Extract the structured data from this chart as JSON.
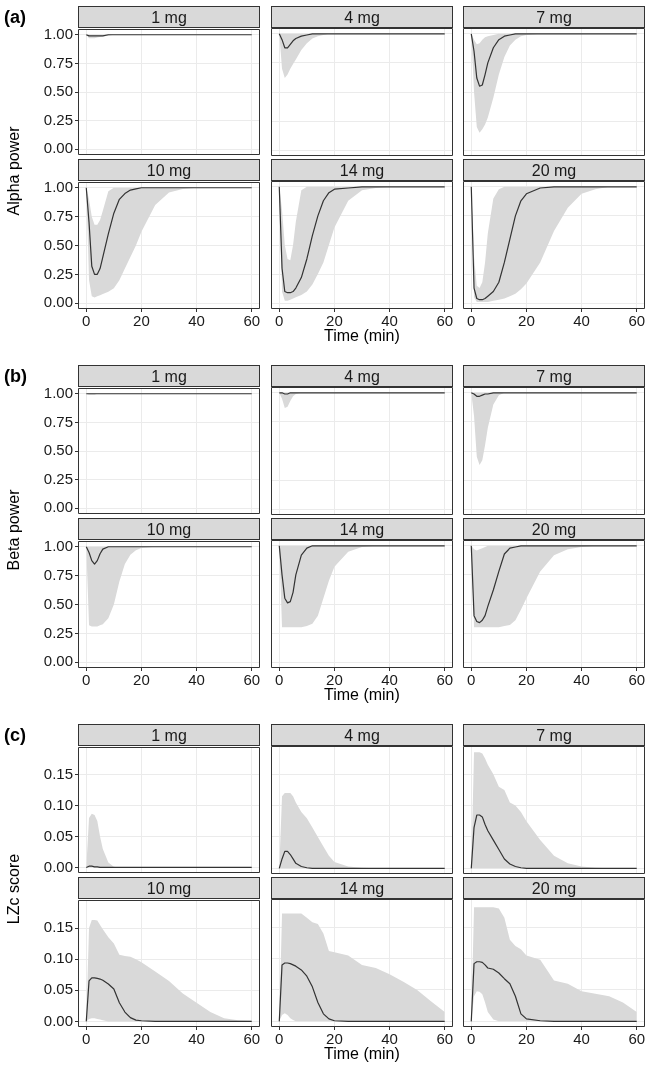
{
  "chart_data": [
    {
      "type": "line",
      "title": "1 mg",
      "ylabel": "Alpha power",
      "annotations": [
        "(a)"
      ],
      "x": [
        0,
        1,
        2,
        3,
        4,
        5,
        6,
        8,
        10,
        12,
        14,
        16,
        18,
        20,
        25,
        30,
        35,
        40,
        45,
        50,
        55,
        60
      ],
      "xlim": [
        -3,
        63
      ],
      "ylim": [
        -0.05,
        1.05
      ],
      "yticks": [
        {
          "value": 0,
          "label": "0.00"
        },
        {
          "value": 0.25,
          "label": "0.25"
        },
        {
          "value": 0.5,
          "label": "0.50"
        },
        {
          "value": 0.75,
          "label": "0.75"
        },
        {
          "value": 1,
          "label": "1.00"
        }
      ],
      "xticks": [
        0,
        20,
        40,
        60
      ],
      "tick_labels": "y",
      "grid": true,
      "marker": "none",
      "series": [
        {
          "color": "#333333",
          "values": [
            1,
            0.99,
            0.99,
            0.99,
            0.99,
            0.99,
            0.99,
            1,
            1,
            1,
            1,
            1,
            1,
            1,
            1,
            1,
            1,
            1,
            1,
            1,
            1,
            1
          ],
          "lower": [
            1,
            0.97,
            0.97,
            0.97,
            0.975,
            0.98,
            0.985,
            0.99,
            1,
            1,
            1,
            1,
            1,
            1,
            1,
            1,
            1,
            1,
            1,
            1,
            1,
            1
          ],
          "upper": [
            1,
            1,
            1,
            1,
            1,
            1,
            1,
            1,
            1,
            1,
            1,
            1,
            1,
            1,
            1,
            1,
            1,
            1,
            1,
            1,
            1,
            1
          ]
        }
      ]
    },
    {
      "type": "line",
      "title": "4 mg",
      "x": [
        0,
        1,
        2,
        3,
        4,
        5,
        6,
        8,
        10,
        12,
        14,
        16,
        18,
        20,
        25,
        30,
        35,
        40,
        45,
        50,
        55,
        60
      ],
      "xlim": [
        -3,
        63
      ],
      "ylim": [
        -0.05,
        1.05
      ],
      "yticks": [
        0,
        0.25,
        0.5,
        0.75,
        1
      ],
      "xticks": [
        0,
        20,
        40,
        60
      ],
      "tick_labels": false,
      "grid": true,
      "marker": "none",
      "series": [
        {
          "color": "#333333",
          "values": [
            1,
            0.95,
            0.88,
            0.88,
            0.91,
            0.94,
            0.96,
            0.98,
            0.99,
            1,
            1,
            1,
            1,
            1,
            1,
            1,
            1,
            1,
            1,
            1,
            1,
            1
          ],
          "lower": [
            1,
            0.7,
            0.62,
            0.65,
            0.7,
            0.74,
            0.78,
            0.86,
            0.92,
            0.96,
            0.98,
            0.99,
            1,
            1,
            1,
            1,
            1,
            1,
            1,
            1,
            1,
            1
          ],
          "upper": [
            1,
            1,
            1,
            1,
            1,
            1,
            1,
            1,
            1,
            1,
            1,
            1,
            1,
            1,
            1,
            1,
            1,
            1,
            1,
            1,
            1,
            1
          ]
        }
      ]
    },
    {
      "type": "line",
      "title": "7 mg",
      "x": [
        0,
        1,
        2,
        3,
        4,
        5,
        6,
        8,
        10,
        12,
        14,
        16,
        18,
        20,
        25,
        30,
        35,
        40,
        45,
        50,
        55,
        60
      ],
      "xlim": [
        -3,
        63
      ],
      "ylim": [
        -0.05,
        1.05
      ],
      "yticks": [
        0,
        0.25,
        0.5,
        0.75,
        1
      ],
      "xticks": [
        0,
        20,
        40,
        60
      ],
      "tick_labels": false,
      "grid": true,
      "marker": "none",
      "series": [
        {
          "color": "#333333",
          "values": [
            1,
            0.85,
            0.62,
            0.55,
            0.56,
            0.65,
            0.75,
            0.88,
            0.95,
            0.98,
            0.99,
            1,
            1,
            1,
            1,
            1,
            1,
            1,
            1,
            1,
            1,
            1
          ],
          "lower": [
            1,
            0.5,
            0.2,
            0.15,
            0.18,
            0.22,
            0.28,
            0.45,
            0.65,
            0.8,
            0.9,
            0.95,
            0.98,
            0.99,
            1,
            1,
            1,
            1,
            1,
            1,
            1,
            1
          ],
          "upper": [
            1,
            0.95,
            0.91,
            0.92,
            0.95,
            0.97,
            0.98,
            0.99,
            1,
            1,
            1,
            1,
            1,
            1,
            1,
            1,
            1,
            1,
            1,
            1,
            1,
            1
          ]
        }
      ]
    },
    {
      "type": "line",
      "title": "10 mg",
      "x": [
        0,
        1,
        2,
        3,
        4,
        5,
        6,
        8,
        10,
        12,
        14,
        16,
        18,
        20,
        25,
        30,
        35,
        40,
        45,
        50,
        55,
        60
      ],
      "xlim": [
        -3,
        63
      ],
      "ylim": [
        -0.05,
        1.05
      ],
      "yticks": [
        {
          "value": 0,
          "label": "0.00"
        },
        {
          "value": 0.25,
          "label": "0.25"
        },
        {
          "value": 0.5,
          "label": "0.50"
        },
        {
          "value": 0.75,
          "label": "0.75"
        },
        {
          "value": 1,
          "label": "1.00"
        }
      ],
      "xticks": [
        0,
        20,
        40,
        60
      ],
      "grid": true,
      "marker": "none",
      "series": [
        {
          "color": "#333333",
          "values": [
            1,
            0.7,
            0.32,
            0.25,
            0.25,
            0.3,
            0.4,
            0.6,
            0.78,
            0.9,
            0.95,
            0.98,
            0.99,
            1,
            1,
            1,
            1,
            1,
            1,
            1,
            1,
            1
          ],
          "lower": [
            1,
            0.2,
            0.06,
            0.05,
            0.06,
            0.07,
            0.08,
            0.1,
            0.13,
            0.2,
            0.3,
            0.4,
            0.5,
            0.62,
            0.85,
            0.96,
            0.99,
            1,
            1,
            1,
            1,
            1
          ],
          "upper": [
            1,
            0.9,
            0.75,
            0.68,
            0.68,
            0.72,
            0.8,
            0.97,
            1,
            1,
            1,
            1,
            1,
            1,
            1,
            1,
            1,
            1,
            1,
            1,
            1,
            1
          ]
        }
      ]
    },
    {
      "type": "line",
      "title": "14 mg",
      "xlabel": "Time (min)",
      "x": [
        0,
        1,
        2,
        3,
        4,
        5,
        6,
        8,
        10,
        12,
        14,
        16,
        18,
        20,
        25,
        30,
        35,
        40,
        45,
        50,
        55,
        60
      ],
      "xlim": [
        -3,
        63
      ],
      "ylim": [
        -0.05,
        1.05
      ],
      "yticks": [
        0,
        0.25,
        0.5,
        0.75,
        1
      ],
      "xticks": [
        0,
        20,
        40,
        60
      ],
      "tick_labels": "x",
      "grid": true,
      "marker": "none",
      "series": [
        {
          "color": "#333333",
          "values": [
            1,
            0.3,
            0.1,
            0.09,
            0.09,
            0.1,
            0.13,
            0.22,
            0.38,
            0.58,
            0.75,
            0.88,
            0.95,
            0.98,
            0.99,
            1,
            1,
            1,
            1,
            1,
            1,
            1
          ],
          "lower": [
            1,
            0.1,
            0.02,
            0.02,
            0.03,
            0.04,
            0.05,
            0.07,
            0.1,
            0.16,
            0.25,
            0.35,
            0.5,
            0.65,
            0.88,
            0.97,
            0.99,
            1,
            1,
            1,
            1,
            1
          ],
          "upper": [
            1,
            0.8,
            0.5,
            0.38,
            0.37,
            0.5,
            0.7,
            0.97,
            1,
            1,
            1,
            1,
            1,
            1,
            1,
            1,
            1,
            1,
            1,
            1,
            1,
            1
          ]
        }
      ]
    },
    {
      "type": "line",
      "title": "20 mg",
      "x": [
        0,
        1,
        2,
        3,
        4,
        5,
        6,
        8,
        10,
        12,
        14,
        16,
        18,
        20,
        25,
        30,
        35,
        40,
        45,
        50,
        55,
        60
      ],
      "xlim": [
        -3,
        63
      ],
      "ylim": [
        -0.05,
        1.05
      ],
      "yticks": [
        0,
        0.25,
        0.5,
        0.75,
        1
      ],
      "xticks": [
        0,
        20,
        40,
        60
      ],
      "tick_labels": "x",
      "grid": true,
      "marker": "none",
      "series": [
        {
          "color": "#333333",
          "values": [
            1,
            0.13,
            0.04,
            0.03,
            0.03,
            0.04,
            0.06,
            0.1,
            0.18,
            0.35,
            0.55,
            0.75,
            0.88,
            0.94,
            0.99,
            1,
            1,
            1,
            1,
            1,
            1,
            1
          ],
          "lower": [
            1,
            0.05,
            0.01,
            0.01,
            0.01,
            0.01,
            0.01,
            0.02,
            0.03,
            0.04,
            0.06,
            0.08,
            0.12,
            0.17,
            0.35,
            0.62,
            0.82,
            0.94,
            0.98,
            1,
            1,
            1
          ],
          "upper": [
            1,
            0.4,
            0.15,
            0.13,
            0.18,
            0.35,
            0.6,
            0.9,
            0.98,
            1,
            1,
            1,
            1,
            1,
            1,
            1,
            1,
            1,
            1,
            1,
            1,
            1
          ]
        }
      ]
    },
    {
      "type": "line",
      "title": "1 mg",
      "ylabel": "Beta power",
      "annotations": [
        "(b)"
      ],
      "x": [
        0,
        1,
        2,
        3,
        4,
        5,
        6,
        8,
        10,
        12,
        14,
        16,
        18,
        20,
        25,
        30,
        35,
        40,
        45,
        50,
        55,
        60
      ],
      "xlim": [
        -3,
        63
      ],
      "ylim": [
        -0.05,
        1.05
      ],
      "yticks": [
        {
          "value": 0,
          "label": "0.00"
        },
        {
          "value": 0.25,
          "label": "0.25"
        },
        {
          "value": 0.5,
          "label": "0.50"
        },
        {
          "value": 0.75,
          "label": "0.75"
        },
        {
          "value": 1,
          "label": "1.00"
        }
      ],
      "xticks": [
        0,
        20,
        40,
        60
      ],
      "tick_labels": "y",
      "grid": true,
      "marker": "none",
      "series": [
        {
          "color": "#333333",
          "values": [
            1,
            1,
            1,
            1,
            1,
            1,
            1,
            1,
            1,
            1,
            1,
            1,
            1,
            1,
            1,
            1,
            1,
            1,
            1,
            1,
            1,
            1
          ],
          "lower": [
            1,
            0.99,
            0.99,
            0.99,
            1,
            1,
            1,
            1,
            1,
            1,
            1,
            1,
            1,
            1,
            1,
            1,
            1,
            1,
            1,
            1,
            1,
            1
          ],
          "upper": [
            1,
            1,
            1,
            1,
            1,
            1,
            1,
            1,
            1,
            1,
            1,
            1,
            1,
            1,
            1,
            1,
            1,
            1,
            1,
            1,
            1,
            1
          ]
        }
      ]
    },
    {
      "type": "line",
      "title": "4 mg",
      "x": [
        0,
        1,
        2,
        3,
        4,
        5,
        6,
        8,
        10,
        12,
        14,
        16,
        18,
        20,
        25,
        30,
        35,
        40,
        45,
        50,
        55,
        60
      ],
      "xlim": [
        -3,
        63
      ],
      "ylim": [
        -0.05,
        1.05
      ],
      "yticks": [
        0,
        0.25,
        0.5,
        0.75,
        1
      ],
      "xticks": [
        0,
        20,
        40,
        60
      ],
      "tick_labels": false,
      "grid": true,
      "marker": "none",
      "series": [
        {
          "color": "#333333",
          "values": [
            1,
            1,
            0.99,
            0.99,
            1,
            1,
            1,
            1,
            1,
            1,
            1,
            1,
            1,
            1,
            1,
            1,
            1,
            1,
            1,
            1,
            1,
            1
          ],
          "lower": [
            1,
            0.95,
            0.87,
            0.88,
            0.93,
            0.97,
            0.99,
            1,
            1,
            1,
            1,
            1,
            1,
            1,
            1,
            1,
            1,
            1,
            1,
            1,
            1,
            1
          ],
          "upper": [
            1,
            1,
            1,
            1,
            1,
            1,
            1,
            1,
            1,
            1,
            1,
            1,
            1,
            1,
            1,
            1,
            1,
            1,
            1,
            1,
            1,
            1
          ]
        }
      ]
    },
    {
      "type": "line",
      "title": "7 mg",
      "x": [
        0,
        1,
        2,
        3,
        4,
        5,
        6,
        8,
        10,
        12,
        14,
        16,
        18,
        20,
        25,
        30,
        35,
        40,
        45,
        50,
        55,
        60
      ],
      "xlim": [
        -3,
        63
      ],
      "ylim": [
        -0.05,
        1.05
      ],
      "yticks": [
        0,
        0.25,
        0.5,
        0.75,
        1
      ],
      "xticks": [
        0,
        20,
        40,
        60
      ],
      "tick_labels": false,
      "grid": true,
      "marker": "none",
      "series": [
        {
          "color": "#333333",
          "values": [
            1,
            0.99,
            0.97,
            0.97,
            0.98,
            0.99,
            0.99,
            1,
            1,
            1,
            1,
            1,
            1,
            1,
            1,
            1,
            1,
            1,
            1,
            1,
            1,
            1
          ],
          "lower": [
            1,
            0.8,
            0.45,
            0.38,
            0.42,
            0.55,
            0.7,
            0.9,
            0.98,
            1,
            1,
            1,
            1,
            1,
            1,
            1,
            1,
            1,
            1,
            1,
            1,
            1
          ],
          "upper": [
            1,
            1,
            1,
            1,
            1,
            1,
            1,
            1,
            1,
            1,
            1,
            1,
            1,
            1,
            1,
            1,
            1,
            1,
            1,
            1,
            1,
            1
          ]
        }
      ]
    },
    {
      "type": "line",
      "title": "10 mg",
      "x": [
        0,
        1,
        2,
        3,
        4,
        5,
        6,
        8,
        10,
        12,
        14,
        16,
        18,
        20,
        25,
        30,
        35,
        40,
        45,
        50,
        55,
        60
      ],
      "xlim": [
        -3,
        63
      ],
      "ylim": [
        -0.05,
        1.05
      ],
      "yticks": [
        {
          "value": 0,
          "label": "0.00"
        },
        {
          "value": 0.25,
          "label": "0.25"
        },
        {
          "value": 0.5,
          "label": "0.50"
        },
        {
          "value": 0.75,
          "label": "0.75"
        },
        {
          "value": 1,
          "label": "1.00"
        }
      ],
      "xticks": [
        0,
        20,
        40,
        60
      ],
      "grid": true,
      "marker": "none",
      "series": [
        {
          "color": "#333333",
          "values": [
            1,
            0.95,
            0.88,
            0.85,
            0.88,
            0.94,
            0.98,
            1,
            1,
            1,
            1,
            1,
            1,
            1,
            1,
            1,
            1,
            1,
            1,
            1,
            1,
            1
          ],
          "lower": [
            1,
            0.32,
            0.31,
            0.31,
            0.31,
            0.32,
            0.33,
            0.38,
            0.5,
            0.7,
            0.85,
            0.93,
            0.97,
            0.99,
            1,
            1,
            1,
            1,
            1,
            1,
            1,
            1
          ],
          "upper": [
            1,
            1,
            1,
            1,
            1,
            1,
            1,
            1,
            1,
            1,
            1,
            1,
            1,
            1,
            1,
            1,
            1,
            1,
            1,
            1,
            1,
            1
          ]
        }
      ]
    },
    {
      "type": "line",
      "title": "14 mg",
      "xlabel": "Time (min)",
      "x": [
        0,
        1,
        2,
        3,
        4,
        5,
        6,
        8,
        10,
        12,
        14,
        16,
        18,
        20,
        25,
        30,
        35,
        40,
        45,
        50,
        55,
        60
      ],
      "xlim": [
        -3,
        63
      ],
      "ylim": [
        -0.05,
        1.05
      ],
      "yticks": [
        0,
        0.25,
        0.5,
        0.75,
        1
      ],
      "xticks": [
        0,
        20,
        40,
        60
      ],
      "tick_labels": "x",
      "grid": true,
      "marker": "none",
      "series": [
        {
          "color": "#333333",
          "values": [
            1,
            0.75,
            0.55,
            0.51,
            0.52,
            0.6,
            0.75,
            0.92,
            0.98,
            1,
            1,
            1,
            1,
            1,
            1,
            1,
            1,
            1,
            1,
            1,
            1,
            1
          ],
          "lower": [
            1,
            0.3,
            0.3,
            0.3,
            0.3,
            0.3,
            0.3,
            0.3,
            0.31,
            0.33,
            0.4,
            0.55,
            0.7,
            0.82,
            0.95,
            0.99,
            1,
            1,
            1,
            1,
            1,
            1
          ],
          "upper": [
            1,
            1,
            1,
            1,
            1,
            1,
            1,
            1,
            1,
            1,
            1,
            1,
            1,
            1,
            1,
            1,
            1,
            1,
            1,
            1,
            1,
            1
          ]
        }
      ]
    },
    {
      "type": "line",
      "title": "20 mg",
      "x": [
        0,
        1,
        2,
        3,
        4,
        5,
        6,
        8,
        10,
        12,
        14,
        16,
        18,
        20,
        25,
        30,
        35,
        40,
        45,
        50,
        55,
        60
      ],
      "xlim": [
        -3,
        63
      ],
      "ylim": [
        -0.05,
        1.05
      ],
      "yticks": [
        0,
        0.25,
        0.5,
        0.75,
        1
      ],
      "xticks": [
        0,
        20,
        40,
        60
      ],
      "tick_labels": "x",
      "grid": true,
      "marker": "none",
      "series": [
        {
          "color": "#333333",
          "values": [
            1,
            0.4,
            0.35,
            0.34,
            0.36,
            0.4,
            0.48,
            0.62,
            0.78,
            0.93,
            0.98,
            0.99,
            1,
            1,
            1,
            1,
            1,
            1,
            1,
            1,
            1,
            1
          ],
          "lower": [
            1,
            0.3,
            0.3,
            0.3,
            0.3,
            0.3,
            0.3,
            0.3,
            0.3,
            0.31,
            0.32,
            0.36,
            0.45,
            0.55,
            0.78,
            0.92,
            0.97,
            0.99,
            1,
            1,
            1,
            1
          ],
          "upper": [
            1,
            0.97,
            0.96,
            0.97,
            0.98,
            0.99,
            1,
            1,
            1,
            1,
            1,
            1,
            1,
            1,
            1,
            1,
            1,
            1,
            1,
            1,
            1,
            1
          ]
        }
      ]
    },
    {
      "type": "line",
      "title": "1 mg",
      "ylabel": "LZc score",
      "annotations": [
        "(c)"
      ],
      "x": [
        0,
        1,
        2,
        3,
        4,
        5,
        6,
        8,
        10,
        12,
        14,
        16,
        18,
        20,
        25,
        30,
        35,
        40,
        45,
        50,
        55,
        60
      ],
      "xlim": [
        -3,
        63
      ],
      "ylim": [
        -0.009,
        0.195
      ],
      "yticks": [
        {
          "value": 0,
          "label": "0.00"
        },
        {
          "value": 0.05,
          "label": "0.05"
        },
        {
          "value": 0.1,
          "label": "0.10"
        },
        {
          "value": 0.15,
          "label": "0.15"
        }
      ],
      "xticks": [
        0,
        20,
        40,
        60
      ],
      "tick_labels": "y",
      "grid": true,
      "marker": "none",
      "series": [
        {
          "color": "#333333",
          "values": [
            0,
            0.002,
            0.002,
            0.001,
            0.001,
            0,
            0,
            0,
            0,
            0,
            0,
            0,
            0,
            0,
            0,
            0,
            0,
            0,
            0,
            0,
            0,
            0
          ],
          "lower": [
            0,
            0,
            0,
            0,
            0,
            0,
            0,
            0,
            0,
            0,
            0,
            0,
            0,
            0,
            0,
            0,
            0,
            0,
            0,
            0,
            0,
            0
          ],
          "upper": [
            0,
            0.08,
            0.087,
            0.085,
            0.075,
            0.05,
            0.03,
            0.008,
            0.001,
            0,
            0,
            0,
            0,
            0,
            0,
            0,
            0,
            0,
            0,
            0,
            0,
            0
          ]
        }
      ]
    },
    {
      "type": "line",
      "title": "4 mg",
      "x": [
        0,
        1,
        2,
        3,
        4,
        5,
        6,
        8,
        10,
        12,
        14,
        16,
        18,
        20,
        25,
        30,
        35,
        40,
        45,
        50,
        55,
        60
      ],
      "xlim": [
        -3,
        63
      ],
      "ylim": [
        -0.009,
        0.195
      ],
      "yticks": [
        0,
        0.05,
        0.1,
        0.15
      ],
      "xticks": [
        0,
        20,
        40,
        60
      ],
      "tick_labels": false,
      "grid": true,
      "marker": "none",
      "series": [
        {
          "color": "#333333",
          "values": [
            0,
            0.015,
            0.027,
            0.027,
            0.022,
            0.015,
            0.008,
            0.003,
            0.001,
            0,
            0,
            0,
            0,
            0,
            0,
            0,
            0,
            0,
            0,
            0,
            0,
            0
          ],
          "lower": [
            0,
            0,
            0,
            0,
            0,
            0,
            0,
            0,
            0,
            0,
            0,
            0,
            0,
            0,
            0,
            0,
            0,
            0,
            0,
            0,
            0,
            0
          ],
          "upper": [
            0,
            0.115,
            0.12,
            0.12,
            0.12,
            0.115,
            0.105,
            0.09,
            0.08,
            0.065,
            0.05,
            0.035,
            0.02,
            0.01,
            0.003,
            0.001,
            0,
            0,
            0,
            0,
            0,
            0
          ]
        }
      ]
    },
    {
      "type": "line",
      "title": "7 mg",
      "x": [
        0,
        1,
        2,
        3,
        4,
        5,
        6,
        8,
        10,
        12,
        14,
        16,
        18,
        20,
        25,
        30,
        35,
        40,
        45,
        50,
        55,
        60
      ],
      "xlim": [
        -3,
        63
      ],
      "ylim": [
        -0.009,
        0.195
      ],
      "yticks": [
        0,
        0.05,
        0.1,
        0.15
      ],
      "xticks": [
        0,
        20,
        40,
        60
      ],
      "tick_labels": false,
      "grid": true,
      "marker": "none",
      "series": [
        {
          "color": "#333333",
          "values": [
            0,
            0.065,
            0.085,
            0.085,
            0.082,
            0.07,
            0.06,
            0.045,
            0.03,
            0.015,
            0.007,
            0.003,
            0.001,
            0,
            0,
            0,
            0,
            0,
            0,
            0,
            0,
            0
          ],
          "lower": [
            0,
            0,
            0,
            0,
            0,
            0,
            0,
            0,
            0,
            0,
            0,
            0,
            0,
            0,
            0,
            0,
            0,
            0,
            0,
            0,
            0,
            0
          ],
          "upper": [
            0,
            0.185,
            0.185,
            0.185,
            0.183,
            0.175,
            0.165,
            0.15,
            0.13,
            0.125,
            0.105,
            0.1,
            0.09,
            0.075,
            0.045,
            0.02,
            0.008,
            0.003,
            0.001,
            0,
            0,
            0
          ]
        }
      ]
    },
    {
      "type": "line",
      "title": "10 mg",
      "x": [
        0,
        1,
        2,
        3,
        4,
        5,
        6,
        8,
        10,
        12,
        14,
        16,
        18,
        20,
        25,
        30,
        35,
        40,
        45,
        50,
        55,
        60
      ],
      "xlim": [
        -3,
        63
      ],
      "ylim": [
        -0.009,
        0.195
      ],
      "yticks": [
        {
          "value": 0,
          "label": "0.00"
        },
        {
          "value": 0.05,
          "label": "0.05"
        },
        {
          "value": 0.1,
          "label": "0.10"
        },
        {
          "value": 0.15,
          "label": "0.15"
        }
      ],
      "xticks": [
        0,
        20,
        40,
        60
      ],
      "grid": true,
      "marker": "none",
      "series": [
        {
          "color": "#333333",
          "values": [
            0,
            0.065,
            0.07,
            0.07,
            0.069,
            0.068,
            0.066,
            0.06,
            0.052,
            0.03,
            0.015,
            0.006,
            0.002,
            0.001,
            0,
            0,
            0,
            0,
            0,
            0,
            0,
            0
          ],
          "lower": [
            0,
            0.004,
            0.005,
            0.005,
            0.004,
            0.003,
            0.002,
            0,
            0,
            0,
            0,
            0,
            0,
            0,
            0,
            0,
            0,
            0,
            0,
            0,
            0,
            0
          ],
          "upper": [
            0,
            0.15,
            0.163,
            0.163,
            0.162,
            0.155,
            0.148,
            0.135,
            0.125,
            0.107,
            0.105,
            0.104,
            0.1,
            0.095,
            0.08,
            0.065,
            0.045,
            0.03,
            0.015,
            0.005,
            0.002,
            0.001
          ]
        }
      ]
    },
    {
      "type": "line",
      "title": "14 mg",
      "xlabel": "Time (min)",
      "x": [
        0,
        1,
        2,
        3,
        4,
        5,
        6,
        8,
        10,
        12,
        14,
        16,
        18,
        20,
        25,
        30,
        35,
        40,
        45,
        50,
        55,
        60
      ],
      "xlim": [
        -3,
        63
      ],
      "ylim": [
        -0.009,
        0.195
      ],
      "yticks": [
        0,
        0.05,
        0.1,
        0.15
      ],
      "xticks": [
        0,
        20,
        40,
        60
      ],
      "tick_labels": "x",
      "grid": true,
      "marker": "none",
      "series": [
        {
          "color": "#333333",
          "values": [
            0,
            0.09,
            0.093,
            0.093,
            0.092,
            0.09,
            0.088,
            0.082,
            0.072,
            0.055,
            0.03,
            0.012,
            0.004,
            0.001,
            0,
            0,
            0,
            0,
            0,
            0,
            0,
            0
          ],
          "lower": [
            0,
            0.01,
            0.013,
            0.01,
            0.005,
            0.002,
            0,
            0,
            0,
            0,
            0,
            0,
            0,
            0,
            0,
            0,
            0,
            0,
            0,
            0,
            0,
            0
          ],
          "upper": [
            0,
            0.172,
            0.172,
            0.172,
            0.172,
            0.172,
            0.172,
            0.172,
            0.165,
            0.158,
            0.155,
            0.14,
            0.112,
            0.11,
            0.105,
            0.09,
            0.085,
            0.075,
            0.063,
            0.05,
            0.032,
            0.015
          ]
        }
      ]
    },
    {
      "type": "line",
      "title": "20 mg",
      "x": [
        0,
        1,
        2,
        3,
        4,
        5,
        6,
        8,
        10,
        12,
        14,
        16,
        18,
        20,
        25,
        30,
        35,
        40,
        45,
        50,
        55,
        60
      ],
      "xlim": [
        -3,
        63
      ],
      "ylim": [
        -0.009,
        0.195
      ],
      "yticks": [
        0,
        0.05,
        0.1,
        0.15
      ],
      "xticks": [
        0,
        20,
        40,
        60
      ],
      "tick_labels": "x",
      "grid": true,
      "marker": "none",
      "series": [
        {
          "color": "#333333",
          "values": [
            0,
            0.092,
            0.095,
            0.095,
            0.094,
            0.09,
            0.085,
            0.083,
            0.077,
            0.068,
            0.06,
            0.04,
            0.012,
            0.004,
            0.001,
            0,
            0,
            0,
            0,
            0,
            0,
            0
          ],
          "lower": [
            0,
            0.04,
            0.048,
            0.047,
            0.043,
            0.03,
            0.015,
            0.003,
            0,
            0,
            0,
            0,
            0,
            0,
            0,
            0,
            0,
            0,
            0,
            0,
            0,
            0
          ],
          "upper": [
            0,
            0.182,
            0.182,
            0.182,
            0.182,
            0.182,
            0.182,
            0.182,
            0.18,
            0.165,
            0.13,
            0.12,
            0.115,
            0.105,
            0.098,
            0.065,
            0.06,
            0.048,
            0.044,
            0.04,
            0.03,
            0.015
          ]
        }
      ]
    }
  ]
}
